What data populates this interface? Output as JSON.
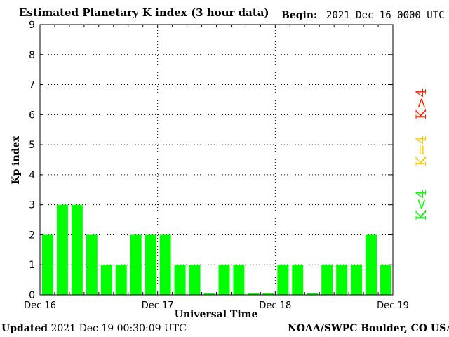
{
  "header": {
    "title": "Estimated Planetary K index (3 hour data)",
    "begin_label": "Begin:",
    "begin_value": "2021 Dec 16 0000 UTC"
  },
  "footer": {
    "updated_label": "Updated",
    "updated_value": "2021 Dec 19 00:30:09 UTC",
    "credit": "NOAA/SWPC Boulder, CO USA"
  },
  "legend": {
    "above_label": "K>4",
    "equal_label": "K=4",
    "below_label": "K<4",
    "colors": {
      "above": "#ff2200",
      "equal": "#ffcc00",
      "below": "#00ff00"
    }
  },
  "chart_data": {
    "type": "bar",
    "title": "Estimated Planetary K index (3 hour data)",
    "xlabel": "Universal Time",
    "ylabel": "Kp index",
    "ylim": [
      0,
      9
    ],
    "yticks": [
      "0",
      "1",
      "2",
      "3",
      "4",
      "5",
      "6",
      "7",
      "8",
      "9"
    ],
    "xticks": [
      "Dec 16",
      "Dec 17",
      "Dec 18",
      "Dec 19"
    ],
    "grid": true,
    "categories": [
      "Dec 16 00",
      "Dec 16 03",
      "Dec 16 06",
      "Dec 16 09",
      "Dec 16 12",
      "Dec 16 15",
      "Dec 16 18",
      "Dec 16 21",
      "Dec 17 00",
      "Dec 17 03",
      "Dec 17 06",
      "Dec 17 09",
      "Dec 17 12",
      "Dec 17 15",
      "Dec 17 18",
      "Dec 17 21",
      "Dec 18 00",
      "Dec 18 03",
      "Dec 18 06",
      "Dec 18 09",
      "Dec 18 12",
      "Dec 18 15",
      "Dec 18 18",
      "Dec 18 21"
    ],
    "values": [
      2,
      3,
      3,
      2,
      1,
      1,
      2,
      2,
      2,
      1,
      1,
      0.05,
      1,
      1,
      0.05,
      0.05,
      1,
      1,
      0.05,
      1,
      1,
      1,
      2,
      1
    ],
    "bar_color": "#00ff00"
  }
}
